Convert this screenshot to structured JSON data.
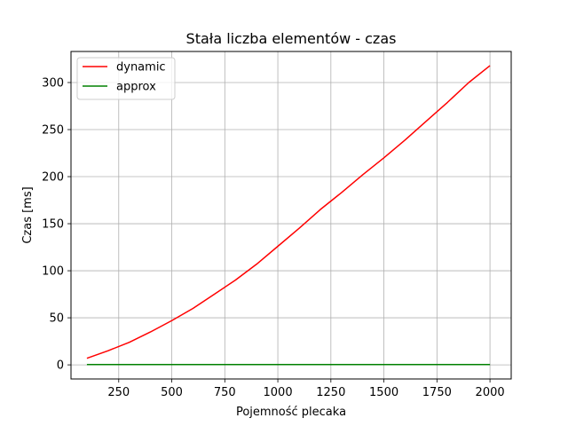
{
  "chart_data": {
    "type": "line",
    "title": "Stała liczba elementów - czas",
    "xlabel": "Pojemność plecaka",
    "ylabel": "Czas [ms]",
    "xlim": [
      25,
      2100
    ],
    "ylim": [
      -15,
      333
    ],
    "xticks": [
      250,
      500,
      750,
      1000,
      1250,
      1500,
      1750,
      2000
    ],
    "yticks": [
      0,
      50,
      100,
      150,
      200,
      250,
      300
    ],
    "grid": true,
    "legend_position": "top-left",
    "x": [
      100,
      200,
      300,
      400,
      500,
      600,
      700,
      800,
      900,
      1000,
      1100,
      1200,
      1300,
      1400,
      1500,
      1600,
      1700,
      1800,
      1900,
      2000
    ],
    "series": [
      {
        "name": "dynamic",
        "color": "#ff0000",
        "values": [
          7,
          15,
          24,
          35,
          47,
          60,
          75,
          90,
          107,
          126,
          145,
          165,
          183,
          202,
          220,
          239,
          259,
          279,
          300,
          318
        ]
      },
      {
        "name": "approx",
        "color": "#008000",
        "values": [
          0.3,
          0.3,
          0.3,
          0.3,
          0.3,
          0.3,
          0.3,
          0.3,
          0.3,
          0.3,
          0.3,
          0.3,
          0.3,
          0.3,
          0.3,
          0.3,
          0.3,
          0.3,
          0.3,
          0.3
        ]
      }
    ]
  }
}
